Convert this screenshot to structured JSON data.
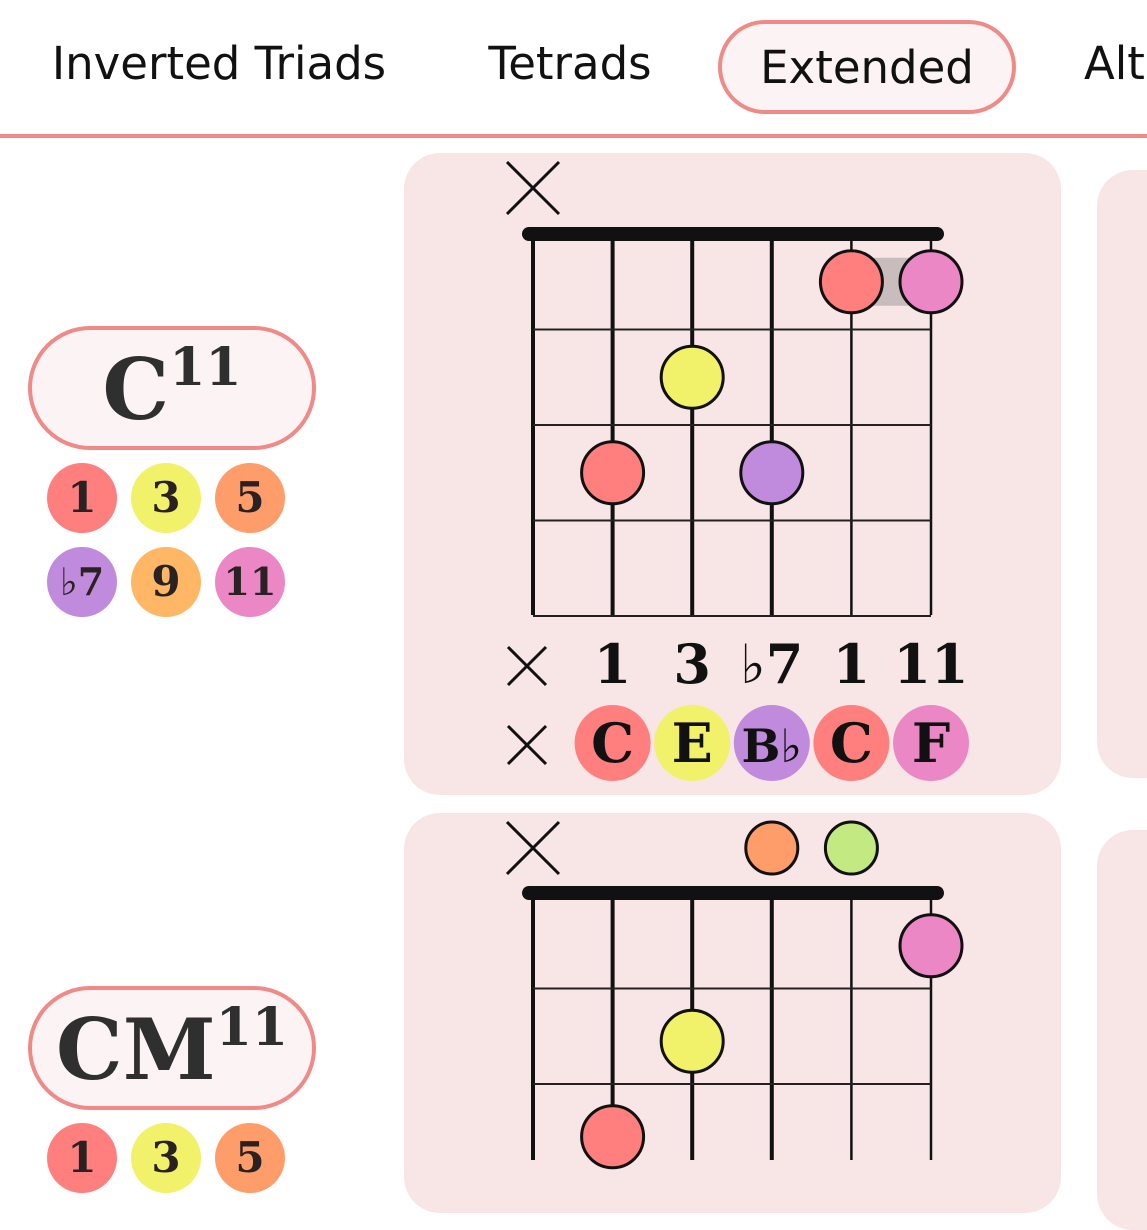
{
  "tabs": [
    {
      "label": "Inverted Triads",
      "active": false
    },
    {
      "label": "Tetrads",
      "active": false
    },
    {
      "label": "Extended",
      "active": true
    },
    {
      "label": "Alte",
      "active": false
    }
  ],
  "colors": {
    "accent": "#f08a87",
    "card_bg": "#f8e5e6",
    "pill_bg": "#fcf4f4",
    "deg_1": "#fe7f7e",
    "deg_3": "#f1f16a",
    "deg_5": "#ff9d6a",
    "deg_b7": "#c08bdc",
    "deg_9": "#ffb765",
    "deg_11": "#ec87c5",
    "deg_13": "#c3e982",
    "barre": "#c9bcbc"
  },
  "chords": [
    {
      "name_root": "C",
      "name_ext": "11",
      "degrees": [
        {
          "label": "1",
          "color": "#fe7f7e"
        },
        {
          "label": "3",
          "color": "#f1f16a"
        },
        {
          "label": "5",
          "color": "#ff9d6a"
        },
        {
          "label": "♭7",
          "color": "#c08bdc"
        },
        {
          "label": "9",
          "color": "#ffb765"
        },
        {
          "label": "11",
          "color": "#ec87c5"
        }
      ],
      "diagram": {
        "mute_mark": "✕",
        "dots": [
          {
            "string": 5,
            "fret": 1,
            "color": "#fe7f7e"
          },
          {
            "string": 6,
            "fret": 1,
            "color": "#ec87c5"
          },
          {
            "string": 3,
            "fret": 2,
            "color": "#f1f16a"
          },
          {
            "string": 2,
            "fret": 3,
            "color": "#fe7f7e"
          },
          {
            "string": 4,
            "fret": 3,
            "color": "#c08bdc"
          }
        ],
        "barre": {
          "fret": 1,
          "from": 5,
          "to": 6
        },
        "intervals": [
          "×",
          "1",
          "3",
          "♭7",
          "1",
          "11"
        ],
        "notes": [
          {
            "label": "×",
            "color": ""
          },
          {
            "label": "C",
            "color": "#fe7f7e"
          },
          {
            "label": "E",
            "color": "#f1f16a"
          },
          {
            "label": "B♭",
            "color": "#c08bdc"
          },
          {
            "label": "C",
            "color": "#fe7f7e"
          },
          {
            "label": "F",
            "color": "#ec87c5"
          }
        ]
      }
    },
    {
      "name_root": "CM",
      "name_ext": "11",
      "degrees": [
        {
          "label": "1",
          "color": "#fe7f7e"
        },
        {
          "label": "3",
          "color": "#f1f16a"
        },
        {
          "label": "5",
          "color": "#ff9d6a"
        }
      ],
      "diagram": {
        "mute_mark": "✕",
        "open_dots": [
          {
            "string": 4,
            "color": "#ff9d6a"
          },
          {
            "string": 5,
            "color": "#c3e982"
          }
        ],
        "dots": [
          {
            "string": 6,
            "fret": 1,
            "color": "#ec87c5"
          },
          {
            "string": 3,
            "fret": 2,
            "color": "#f1f16a"
          },
          {
            "string": 2,
            "fret": 3,
            "color": "#fe7f7e"
          }
        ]
      }
    }
  ]
}
